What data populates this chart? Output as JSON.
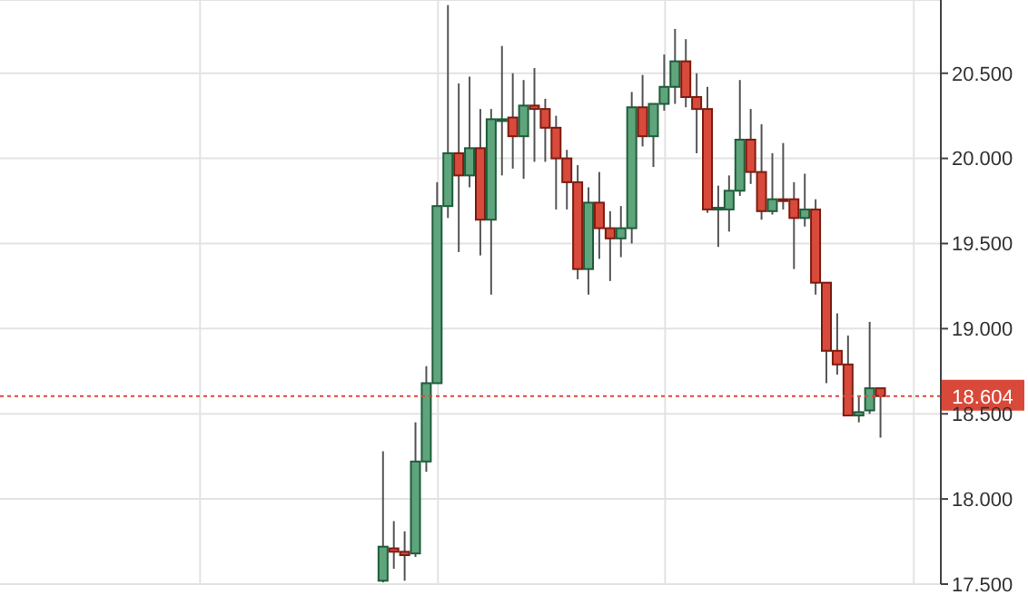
{
  "chart_data": {
    "type": "candlestick",
    "categories": [
      null,
      null,
      null,
      null,
      null,
      null,
      null,
      null,
      null,
      null,
      null,
      null,
      null,
      null,
      null,
      null,
      null,
      null,
      null,
      null,
      null,
      null,
      null,
      null,
      null,
      null,
      null,
      null,
      null,
      null,
      null,
      null,
      null,
      null,
      null,
      null,
      null,
      null,
      null,
      null,
      null,
      null,
      null,
      null,
      null,
      null,
      null
    ],
    "ohlc": [
      [
        17.52,
        18.28,
        17.51,
        17.72
      ],
      [
        17.71,
        17.87,
        17.59,
        17.69
      ],
      [
        17.69,
        17.81,
        17.52,
        17.67
      ],
      [
        17.68,
        18.45,
        17.66,
        18.22
      ],
      [
        18.22,
        18.78,
        18.16,
        18.68
      ],
      [
        18.68,
        19.86,
        18.68,
        19.72
      ],
      [
        19.72,
        20.9,
        19.65,
        20.03
      ],
      [
        20.03,
        20.44,
        19.45,
        19.9
      ],
      [
        19.9,
        20.48,
        19.83,
        20.06
      ],
      [
        20.06,
        20.29,
        19.43,
        19.64
      ],
      [
        19.64,
        20.29,
        19.2,
        20.23
      ],
      [
        20.22,
        20.66,
        19.9,
        20.23
      ],
      [
        20.24,
        20.5,
        19.94,
        20.13
      ],
      [
        20.13,
        20.46,
        19.88,
        20.31
      ],
      [
        20.31,
        20.53,
        19.98,
        20.29
      ],
      [
        20.29,
        20.35,
        19.98,
        20.18
      ],
      [
        20.18,
        20.25,
        19.7,
        20.0
      ],
      [
        20.0,
        20.05,
        19.7,
        19.86
      ],
      [
        19.86,
        19.96,
        19.29,
        19.35
      ],
      [
        19.35,
        19.83,
        19.2,
        19.74
      ],
      [
        19.74,
        19.92,
        19.41,
        19.59
      ],
      [
        19.59,
        19.69,
        19.28,
        19.53
      ],
      [
        19.53,
        19.72,
        19.42,
        19.59
      ],
      [
        19.59,
        20.39,
        19.5,
        20.3
      ],
      [
        20.3,
        20.49,
        20.07,
        20.13
      ],
      [
        20.13,
        20.32,
        19.95,
        20.32
      ],
      [
        20.32,
        20.61,
        20.28,
        20.42
      ],
      [
        20.42,
        20.76,
        20.32,
        20.57
      ],
      [
        20.57,
        20.7,
        20.3,
        20.36
      ],
      [
        20.36,
        20.5,
        20.03,
        20.29
      ],
      [
        20.29,
        20.42,
        19.68,
        19.7
      ],
      [
        19.7,
        19.84,
        19.48,
        19.71
      ],
      [
        19.7,
        19.9,
        19.57,
        19.81
      ],
      [
        19.81,
        20.46,
        19.78,
        20.11
      ],
      [
        20.11,
        20.29,
        19.85,
        19.92
      ],
      [
        19.92,
        20.2,
        19.64,
        19.69
      ],
      [
        19.69,
        20.03,
        19.67,
        19.76
      ],
      [
        19.76,
        20.09,
        19.7,
        19.75
      ],
      [
        19.76,
        19.86,
        19.35,
        19.65
      ],
      [
        19.65,
        19.91,
        19.6,
        19.7
      ],
      [
        19.7,
        19.76,
        19.2,
        19.27
      ],
      [
        19.27,
        19.27,
        18.68,
        18.87
      ],
      [
        18.87,
        19.09,
        18.73,
        18.79
      ],
      [
        18.79,
        18.96,
        18.49,
        18.49
      ],
      [
        18.49,
        18.6,
        18.45,
        18.51
      ],
      [
        18.52,
        19.04,
        18.5,
        18.65
      ],
      [
        18.65,
        18.65,
        18.36,
        18.604
      ]
    ],
    "ylim": [
      17.5,
      20.93
    ],
    "yticks": [
      {
        "value": 17.5,
        "label": "17.500"
      },
      {
        "value": 18,
        "label": "18.000"
      },
      {
        "value": 18.5,
        "label": "18.500"
      },
      {
        "value": 19,
        "label": "19.000"
      },
      {
        "value": 19.5,
        "label": "19.500"
      },
      {
        "value": 20,
        "label": "20.000"
      },
      {
        "value": 20.5,
        "label": "20.500"
      }
    ],
    "ref_lines": [
      {
        "axis": "y",
        "value": 18.604,
        "label": "18.604",
        "color": "#d9493a",
        "line_style": "dotted"
      }
    ],
    "grid": true,
    "tick_labels": "y"
  }
}
